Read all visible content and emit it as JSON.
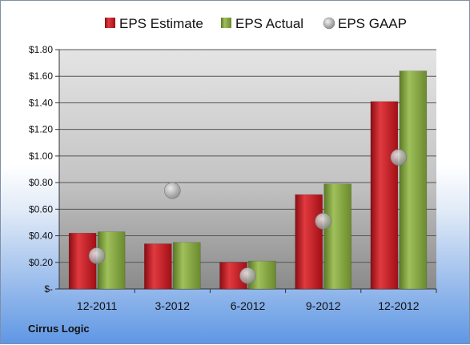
{
  "company": "Cirrus Logic",
  "chart_data": {
    "type": "bar",
    "categories": [
      "12-2011",
      "3-2012",
      "6-2012",
      "9-2012",
      "12-2012"
    ],
    "series": [
      {
        "name": "EPS Estimate",
        "type": "bar",
        "color": "#c0141c",
        "values": [
          0.42,
          0.34,
          0.2,
          0.71,
          1.41
        ]
      },
      {
        "name": "EPS Actual",
        "type": "bar",
        "color": "#7a9a3a",
        "values": [
          0.43,
          0.35,
          0.21,
          0.79,
          1.64
        ]
      },
      {
        "name": "EPS GAAP",
        "type": "marker",
        "color": "#a8a8a8",
        "values": [
          0.25,
          0.74,
          0.1,
          0.51,
          0.99
        ]
      }
    ],
    "ylim": [
      0,
      1.8
    ],
    "yticks": [
      0,
      0.2,
      0.4,
      0.6,
      0.8,
      1.0,
      1.2,
      1.4,
      1.6,
      1.8
    ],
    "ytick_labels": [
      "$-",
      "$0.20",
      "$0.40",
      "$0.60",
      "$0.80",
      "$1.00",
      "$1.20",
      "$1.40",
      "$1.60",
      "$1.80"
    ],
    "grid": true,
    "legend_position": "top"
  }
}
